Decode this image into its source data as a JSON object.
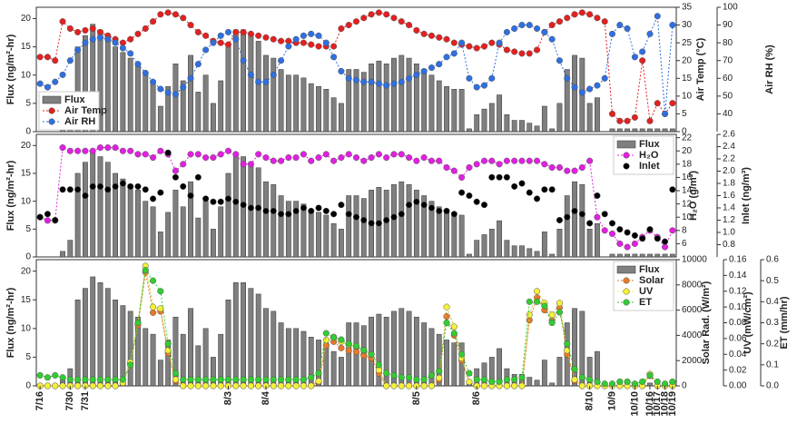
{
  "chart_data": [
    {
      "type": "combo",
      "ylabel": "Flux (ng/m²-hr)",
      "y2label": "Air Temp (°C)",
      "y3label": "Air RH (%)",
      "categories": [
        "7/16",
        null,
        null,
        null,
        "7/30",
        null,
        "7/31",
        null,
        null,
        null,
        null,
        null,
        null,
        null,
        null,
        null,
        null,
        null,
        null,
        null,
        null,
        null,
        null,
        null,
        null,
        "8/3",
        null,
        null,
        null,
        null,
        "8/4",
        null,
        null,
        null,
        null,
        null,
        null,
        null,
        null,
        null,
        null,
        null,
        null,
        null,
        null,
        null,
        null,
        null,
        null,
        null,
        "8/5",
        null,
        null,
        null,
        null,
        null,
        null,
        null,
        "8/6",
        null,
        null,
        null,
        null,
        null,
        null,
        null,
        null,
        null,
        null,
        null,
        null,
        null,
        null,
        "8/10",
        null,
        null,
        "10/9",
        null,
        null,
        "10/10",
        null,
        "10/16",
        "10/17",
        "10/18",
        "10/19"
      ],
      "ylim": [
        0,
        22
      ],
      "yticks": [
        0,
        5,
        10,
        15,
        20
      ],
      "y2lim": [
        0,
        35
      ],
      "y2ticks": [
        0,
        5,
        10,
        15,
        20,
        25,
        30,
        35
      ],
      "y3lim": [
        30,
        100
      ],
      "y3ticks": [
        40,
        50,
        60,
        70,
        80,
        90,
        100
      ],
      "legend": "lower left",
      "series": [
        {
          "name": "Flux",
          "type": "bar",
          "color": "#7f7f7f",
          "values": [
            0,
            0,
            0,
            1,
            3,
            15,
            17,
            19,
            18,
            17,
            15,
            14,
            13,
            12,
            10,
            9,
            4.5,
            8,
            12,
            9,
            13.5,
            7,
            10,
            5,
            9,
            15,
            18,
            18,
            17,
            16,
            13.5,
            13,
            11,
            10,
            10,
            9.5,
            8.5,
            8,
            7.5,
            6,
            5,
            11,
            11,
            10.5,
            12,
            12.5,
            12,
            13,
            13.5,
            13,
            12,
            11,
            10,
            9,
            8,
            7.5,
            7.5,
            0.5,
            3,
            4,
            5,
            6.5,
            3,
            2,
            2,
            1.5,
            1,
            4.5,
            0.5,
            5,
            11,
            13.5,
            13,
            5,
            6,
            0,
            0.5,
            0.5,
            0.5,
            0.5,
            0.5,
            0.5,
            0.5,
            0.5,
            0.5
          ]
        },
        {
          "name": "Air Temp",
          "type": "line",
          "axis": "y2",
          "color": "#e32020",
          "values": [
            21,
            21,
            20,
            31,
            29,
            28,
            28.5,
            29,
            28,
            27,
            26,
            25,
            26,
            27.5,
            29,
            31,
            33,
            33.5,
            33,
            32,
            30,
            28,
            27,
            25.5,
            25,
            24.5,
            28,
            28,
            27.5,
            27,
            26.5,
            26,
            25.5,
            25.5,
            25,
            25,
            24.5,
            24,
            24,
            24,
            29,
            30,
            31,
            32,
            33,
            33.5,
            33,
            32,
            31,
            30,
            28.5,
            27.5,
            27,
            26.5,
            26,
            25,
            24.5,
            24,
            23.5,
            24,
            25,
            24.5,
            23,
            22.5,
            22,
            22,
            23,
            28,
            30,
            31,
            32,
            33,
            33.5,
            33,
            32,
            31,
            5,
            3,
            3,
            4,
            20,
            3,
            8,
            5,
            8
          ]
        },
        {
          "name": "Air RH",
          "type": "line",
          "axis": "y3",
          "color": "#2f6fe0",
          "values": [
            57,
            55,
            58,
            62,
            70,
            76,
            80,
            82,
            83,
            82,
            80,
            77,
            74,
            68,
            63,
            58,
            54,
            52,
            51,
            55,
            60,
            68,
            76,
            80,
            84,
            86,
            82,
            70,
            62,
            58,
            58,
            62,
            70,
            78,
            82,
            84,
            85,
            84,
            80,
            72,
            64,
            60,
            59,
            58,
            58,
            57,
            56,
            57,
            58,
            60,
            62,
            64,
            66,
            68,
            72,
            74,
            80,
            60,
            55,
            56,
            60,
            80,
            86,
            88,
            90,
            90,
            88,
            86,
            82,
            70,
            60,
            55,
            52,
            54,
            56,
            60,
            85,
            90,
            88,
            72,
            75,
            85,
            95,
            40,
            90
          ]
        }
      ]
    },
    {
      "type": "combo",
      "y2label": "H₂O (g/m³)",
      "y3label": "Inlet (ng/m³)",
      "y2lim": [
        4,
        22.5
      ],
      "y2ticks": [
        6,
        8,
        10,
        12,
        14,
        16,
        18,
        20,
        22
      ],
      "y3lim": [
        0.6,
        2.6
      ],
      "y3ticks": [
        0.8,
        {
          "value": 1,
          "label": "1.0"
        },
        1.2,
        1.4,
        1.6,
        1.8,
        {
          "value": 2,
          "label": "2.0"
        },
        2.2,
        2.4,
        2.6
      ],
      "legend": "upper right",
      "series": [
        {
          "name": "H₂O",
          "type": "line",
          "axis": "y2",
          "color": "#e020e0",
          "values": [
            10,
            9.5,
            9.5,
            20.5,
            20,
            20,
            20,
            20,
            20.5,
            20.5,
            20.5,
            20,
            20,
            19.5,
            19.5,
            19,
            20,
            19.5,
            17,
            18,
            19.5,
            19.5,
            19,
            19,
            19.5,
            20,
            19.5,
            18,
            18,
            19.5,
            19,
            18.5,
            18.5,
            19,
            19,
            19.5,
            18.5,
            19,
            19.5,
            18.5,
            19,
            19.5,
            19,
            18.5,
            19,
            19.5,
            19,
            19.5,
            19.5,
            19,
            18.5,
            19,
            18.5,
            18.5,
            17.5,
            17,
            16,
            17.5,
            18,
            18.5,
            18.5,
            18,
            18.5,
            18.5,
            18.5,
            18.5,
            18.5,
            18,
            17.5,
            17.5,
            17,
            17,
            17.5,
            18.5,
            10,
            8,
            7.5,
            6,
            5.5,
            6,
            7,
            8,
            7,
            5.5,
            8
          ]
        },
        {
          "name": "Inlet",
          "type": "line",
          "line": false,
          "axis": "y3",
          "color": "#000000",
          "values": [
            1.25,
            1.3,
            1.2,
            1.7,
            1.7,
            1.7,
            1.6,
            1.75,
            1.75,
            1.7,
            1.75,
            1.8,
            1.75,
            1.75,
            1.7,
            1.55,
            1.65,
            2.3,
            1.9,
            1.75,
            1.6,
            1.9,
            1.55,
            1.5,
            1.5,
            1.55,
            1.5,
            1.45,
            1.4,
            1.4,
            1.35,
            1.35,
            1.3,
            1.3,
            1.35,
            1.4,
            1.35,
            1.4,
            1.35,
            1.3,
            1.45,
            1.3,
            1.25,
            1.2,
            1.15,
            1.15,
            1.2,
            1.25,
            1.3,
            1.45,
            1.5,
            1.45,
            1.4,
            1.35,
            1.35,
            1.3,
            1.65,
            1.6,
            1.5,
            1.45,
            1.9,
            1.9,
            1.9,
            1.75,
            1.8,
            1.65,
            1.55,
            1.7,
            1.7,
            1.2,
            1.25,
            1.35,
            1.3,
            1.15,
            1.6,
            1.3,
            1.15,
            1.05,
            1,
            0.95,
            0.9,
            1.05,
            0.9,
            0.85,
            1.7
          ]
        }
      ]
    },
    {
      "type": "combo",
      "y2label": "Solar Rad. (W/m²)",
      "y3label": "UV (mW/cm²)",
      "y4label": "ET (mm/hr)",
      "y2lim": [
        0,
        10000
      ],
      "y2ticks": [
        0,
        2000,
        4000,
        6000,
        8000,
        10000
      ],
      "y3lim": [
        0,
        0.16
      ],
      "y3ticks": [
        {
          "value": 0,
          "label": "0.00"
        },
        0.02,
        0.04,
        0.06,
        0.08,
        {
          "value": 0.1,
          "label": "0.10"
        },
        0.12,
        0.14,
        0.16
      ],
      "y4lim": [
        0,
        0.6
      ],
      "y4ticks": [
        {
          "value": 0,
          "label": "0.0"
        },
        0.1,
        0.2,
        0.3,
        0.4,
        0.5,
        0.6
      ],
      "legend": "upper right",
      "series": [
        {
          "name": "Solar",
          "type": "line",
          "axis": "y2",
          "color": "#e8782a",
          "values": [
            0,
            0,
            0,
            0,
            0,
            0,
            0,
            0,
            0,
            0,
            0,
            200,
            1800,
            4800,
            9000,
            5800,
            5900,
            2600,
            400,
            0,
            0,
            0,
            0,
            0,
            0,
            0,
            0,
            0,
            0,
            0,
            0,
            0,
            0,
            0,
            0,
            0,
            0,
            300,
            3200,
            3500,
            3000,
            2800,
            2700,
            2400,
            2200,
            1000,
            0,
            0,
            0,
            0,
            0,
            0,
            0,
            500,
            5500,
            4000,
            2000,
            300,
            0,
            0,
            0,
            0,
            0,
            0,
            0,
            5200,
            7000,
            6000,
            5200,
            6200,
            2500,
            400,
            0,
            0,
            0,
            0,
            0,
            0,
            0,
            0,
            0,
            800,
            0,
            0,
            0
          ]
        },
        {
          "name": "UV",
          "type": "line",
          "axis": "y3",
          "color": "#f5f03a",
          "values": [
            0,
            0,
            0,
            0,
            0,
            0,
            0,
            0,
            0,
            0,
            0,
            0.004,
            0.03,
            0.08,
            0.152,
            0.1,
            0.098,
            0.045,
            0.008,
            0,
            0,
            0,
            0,
            0,
            0,
            0,
            0,
            0,
            0,
            0,
            0,
            0,
            0,
            0,
            0,
            0,
            0,
            0.006,
            0.058,
            0.062,
            0.056,
            0.052,
            0.05,
            0.045,
            0.04,
            0.02,
            0,
            0,
            0,
            0,
            0,
            0,
            0,
            0.01,
            0.1,
            0.075,
            0.035,
            0.005,
            0,
            0,
            0,
            0,
            0,
            0,
            0,
            0.09,
            0.12,
            0.105,
            0.09,
            0.105,
            0.045,
            0.008,
            0,
            0,
            0,
            0,
            0,
            0,
            0,
            0,
            0,
            0.015,
            0,
            0,
            0
          ]
        },
        {
          "name": "ET",
          "type": "line",
          "axis": "y4",
          "color": "#33cc33",
          "values": [
            0.05,
            0.04,
            0.05,
            0.04,
            0.03,
            0.03,
            0.03,
            0.03,
            0.03,
            0.03,
            0.03,
            0.03,
            0.1,
            0.3,
            0.55,
            0.5,
            0.45,
            0.2,
            0.06,
            0.03,
            0.03,
            0.03,
            0.03,
            0.03,
            0.03,
            0.03,
            0.03,
            0.03,
            0.03,
            0.03,
            0.03,
            0.03,
            0.03,
            0.03,
            0.03,
            0.03,
            0.04,
            0.06,
            0.25,
            0.23,
            0.22,
            0.2,
            0.19,
            0.17,
            0.15,
            0.1,
            0.06,
            0.05,
            0.04,
            0.04,
            0.03,
            0.03,
            0.05,
            0.07,
            0.3,
            0.25,
            0.15,
            0.06,
            0.03,
            0.03,
            0.02,
            0.02,
            0.03,
            0.03,
            0.04,
            0.4,
            0.4,
            0.38,
            0.3,
            0.35,
            0.2,
            0.08,
            0.04,
            0.03,
            0.02,
            0.01,
            0.01,
            0.02,
            0.02,
            0.01,
            0.02,
            0.05,
            0.02,
            0.01,
            0.02
          ]
        }
      ]
    }
  ]
}
